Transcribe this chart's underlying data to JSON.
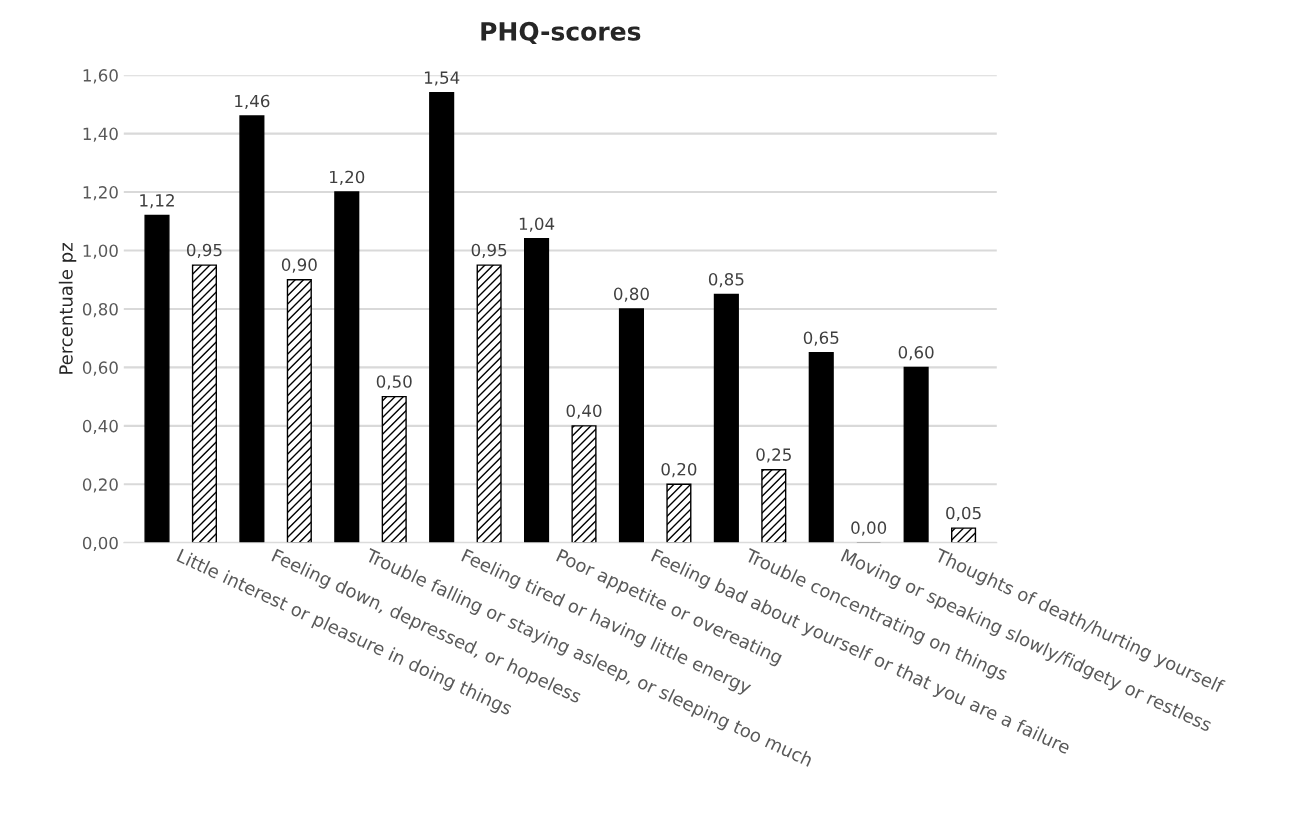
{
  "chart_data": {
    "type": "bar",
    "title": "PHQ-scores",
    "ylabel": "Percentuale pz",
    "categories": [
      "Little interest or pleasure in doing things",
      "Feeling down, depressed, or hopeless",
      "Trouble falling or staying asleep, or sleeping too much",
      "Feeling tired or having little energy",
      "Poor appetite or overeating",
      "Feeling bad about yourself or that you are a failure",
      "Trouble concentrating on things",
      "Moving or speaking slowly/fidgety or restless",
      "Thoughts of death/hurting yourself"
    ],
    "series": [
      {
        "color": "#000000",
        "values": [
          1.12,
          1.46,
          1.2,
          1.54,
          1.04,
          0.8,
          0.85,
          0.65,
          0.6
        ],
        "value_labels": [
          "1,12",
          "1,46",
          "1,20",
          "1,54",
          "1,04",
          "0,80",
          "0,85",
          "0,65",
          "0,60"
        ]
      },
      {
        "color": "#000000",
        "values": [
          0.95,
          0.9,
          0.5,
          0.95,
          0.4,
          0.2,
          0.25,
          0.0,
          0.05
        ],
        "value_labels": [
          "0,95",
          "0,90",
          "0,50",
          "0,95",
          "0,40",
          "0,20",
          "0,25",
          "0,00",
          "0,05"
        ]
      }
    ],
    "ylim": [
      0,
      1.6
    ],
    "yticks": [
      {
        "value": 0,
        "label": "0,00"
      },
      {
        "value": 0.2,
        "label": "0,20"
      },
      {
        "value": 0.4,
        "label": "0,40"
      },
      {
        "value": 0.6,
        "label": "0,60"
      },
      {
        "value": 0.8,
        "label": "0,80"
      },
      {
        "value": 1.0,
        "label": "1,00"
      },
      {
        "value": 1.2,
        "label": "1,20"
      },
      {
        "value": 1.4,
        "label": "1,40"
      },
      {
        "value": 1.6,
        "label": "1,60"
      }
    ],
    "grid": "y",
    "legend": false
  }
}
